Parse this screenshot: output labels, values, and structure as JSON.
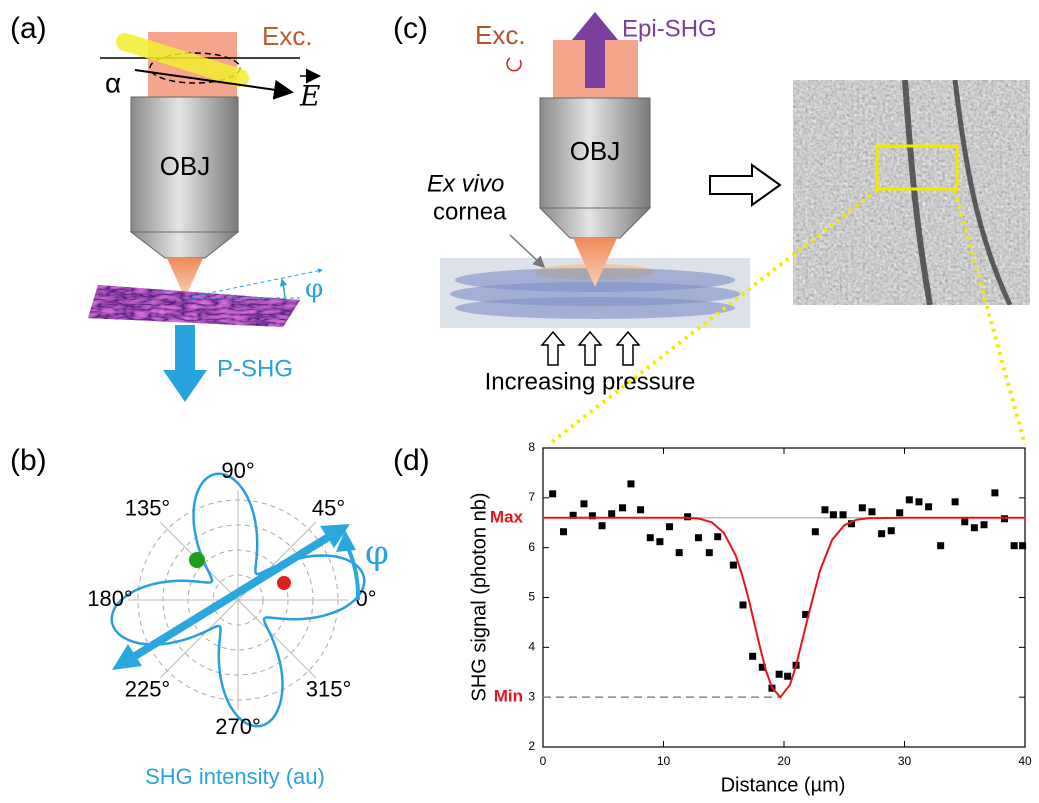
{
  "panel_labels": [
    "(a)",
    "(b)",
    "(c)",
    "(d)"
  ],
  "panel_a": {
    "excitation": "Exc.",
    "polarization_angle": "α",
    "field": "E",
    "objective": "OBJ",
    "rotation_angle": "φ",
    "detection": "P-SHG"
  },
  "panel_b": {
    "angle_labels": [
      "0°",
      "45°",
      "90°",
      "135°",
      "180°",
      "225°",
      "270°",
      "315°"
    ],
    "rotation_angle": "φ",
    "axis_label": "SHG intensity (au)"
  },
  "panel_c": {
    "excitation": "Exc.",
    "detection": "Epi-SHG",
    "objective": "OBJ",
    "sample_prefix": "Ex vivo",
    "sample": "cornea",
    "pressure": "Increasing pressure"
  },
  "chart_data": {
    "type": "scatter",
    "x_label": "Distance (µm)",
    "y_label": "SHG signal (photon nb)",
    "xlim": [
      0,
      40
    ],
    "ylim": [
      2,
      8
    ],
    "xticks": [
      0,
      10,
      20,
      30,
      40
    ],
    "yticks": [
      2,
      3,
      4,
      5,
      6,
      7,
      8
    ],
    "series": [
      {
        "type": "scatter",
        "color": "#000000",
        "x": [
          0.8,
          1.7,
          2.5,
          3.4,
          4.1,
          4.9,
          5.7,
          6.6,
          7.3,
          8.1,
          8.9,
          9.7,
          10.5,
          11.3,
          12.0,
          12.9,
          13.8,
          14.5,
          15.8,
          16.6,
          17.4,
          18.2,
          19.0,
          19.6,
          20.3,
          21.0,
          21.8,
          22.6,
          23.4,
          24.1,
          24.9,
          25.6,
          26.5,
          27.3,
          28.1,
          28.9,
          29.6,
          30.4,
          31.2,
          32.0,
          33.0,
          34.2,
          35.0,
          35.8,
          36.6,
          37.5,
          38.3,
          39.1,
          39.8
        ],
        "values": [
          7.08,
          6.32,
          6.65,
          6.88,
          6.64,
          6.44,
          6.68,
          6.8,
          7.28,
          6.76,
          6.2,
          6.12,
          6.42,
          5.9,
          6.62,
          6.2,
          5.9,
          6.22,
          5.65,
          4.85,
          3.82,
          3.6,
          3.18,
          3.46,
          3.42,
          3.64,
          4.66,
          6.32,
          6.76,
          6.66,
          6.66,
          6.48,
          6.8,
          6.72,
          6.28,
          6.34,
          6.7,
          6.96,
          6.92,
          6.82,
          6.04,
          6.92,
          6.52,
          6.4,
          6.46,
          7.1,
          6.58,
          6.04,
          6.04
        ]
      },
      {
        "type": "line",
        "color": "#e8141c",
        "x": [
          0,
          10,
          12,
          13,
          14,
          15,
          16,
          16.5,
          17,
          17.5,
          18,
          18.5,
          19,
          19.7,
          20.5,
          21,
          22,
          23,
          24,
          25,
          26,
          27,
          30,
          40
        ],
        "values": [
          6.6,
          6.6,
          6.6,
          6.58,
          6.51,
          6.3,
          5.84,
          5.47,
          5.03,
          4.52,
          4.01,
          3.54,
          3.19,
          3.0,
          3.25,
          3.63,
          4.62,
          5.55,
          6.16,
          6.45,
          6.56,
          6.59,
          6.6,
          6.6
        ]
      }
    ],
    "annotations": [
      {
        "label": "Max",
        "value": 6.6,
        "color": "#e8141c"
      },
      {
        "label": "Min",
        "value": 3,
        "color": "#e8141c"
      }
    ]
  }
}
